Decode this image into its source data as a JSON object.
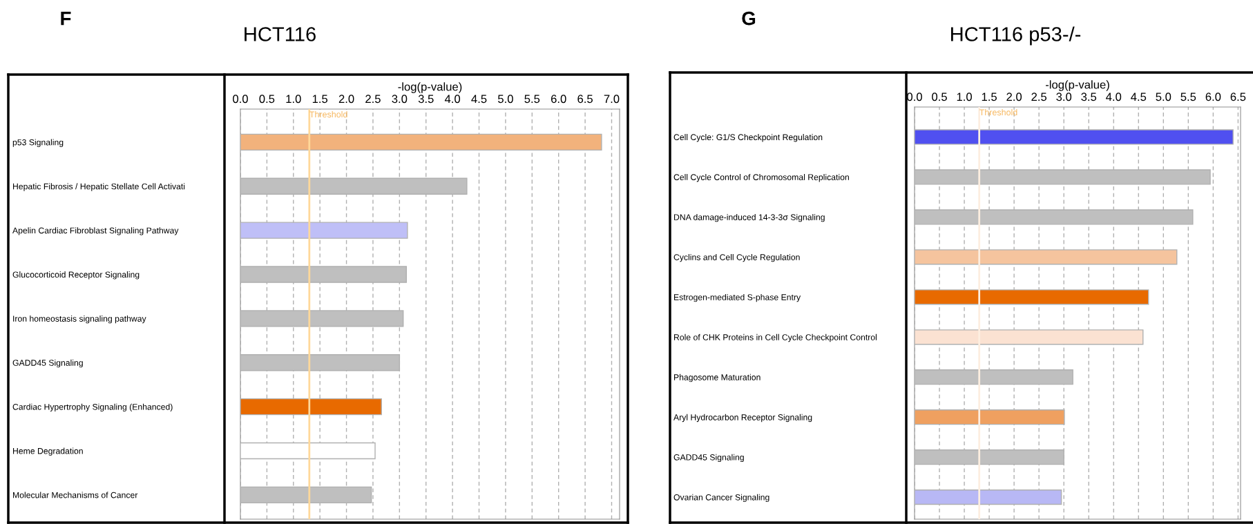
{
  "chart_data": [
    {
      "type": "bar",
      "orientation": "horizontal",
      "title": "HCT116",
      "xlabel": "-log(p-value)",
      "annotations": [
        "F"
      ],
      "categories": [
        "p53 Signaling",
        "Hepatic Fibrosis / Hepatic Stellate Cell Activati",
        "Apelin Cardiac Fibroblast Signaling Pathway",
        "Glucocorticoid Receptor Signaling",
        "Iron homeostasis signaling pathway",
        "GADD45 Signaling",
        "Cardiac Hypertrophy Signaling (Enhanced)",
        "Heme Degradation",
        "Molecular Mechanisms of Cancer"
      ],
      "values": [
        6.81,
        4.27,
        3.15,
        3.13,
        3.07,
        3.0,
        2.66,
        2.54,
        2.47
      ],
      "colors": [
        "#f2b27c",
        "#bfbfbf",
        "#bfbff7",
        "#bfbfbf",
        "#bfbfbf",
        "#bfbfbf",
        "#e86a00",
        "#ffffff",
        "#bfbfbf"
      ],
      "xlim": [
        0,
        7.15
      ],
      "xticks": [
        {
          "value": 0,
          "label": "0.0"
        },
        {
          "value": 0.5,
          "label": "0.5"
        },
        {
          "value": 1,
          "label": "1.0"
        },
        {
          "value": 1.5,
          "label": "1.5"
        },
        {
          "value": 2,
          "label": "2.0"
        },
        {
          "value": 2.5,
          "label": "2.5"
        },
        {
          "value": 3,
          "label": "3.0"
        },
        {
          "value": 3.5,
          "label": "3.5"
        },
        {
          "value": 4,
          "label": "4.0"
        },
        {
          "value": 4.5,
          "label": "4.5"
        },
        {
          "value": 5,
          "label": "5.0"
        },
        {
          "value": 5.5,
          "label": "5.5"
        },
        {
          "value": 6,
          "label": "6.0"
        },
        {
          "value": 6.5,
          "label": "6.5"
        },
        {
          "value": 7,
          "label": "7.0"
        }
      ],
      "ref_lines": [
        {
          "axis": "x",
          "value": 1.3,
          "label": "Threshold",
          "color": "#ffd89a"
        }
      ],
      "grid": "x",
      "legend": false
    },
    {
      "type": "bar",
      "orientation": "horizontal",
      "title": "HCT116 p53-/-",
      "xlabel": "-log(p-value)",
      "annotations": [
        "G"
      ],
      "categories": [
        "Cell Cycle: G1/S Checkpoint Regulation",
        "Cell Cycle Control of Chromosomal Replication",
        "DNA damage-induced 14-3-3σ Signaling",
        "Cyclins and Cell Cycle Regulation",
        "Estrogen-mediated S-phase Entry",
        "Role of CHK Proteins in Cell Cycle Checkpoint Control",
        "Phagosome Maturation",
        "Aryl Hydrocarbon Receptor Signaling",
        "GADD45 Signaling",
        "Ovarian Cancer Signaling"
      ],
      "values": [
        6.4,
        5.94,
        5.59,
        5.27,
        4.7,
        4.59,
        3.18,
        3.01,
        3.0,
        2.95
      ],
      "colors": [
        "#5050f0",
        "#bfbfbf",
        "#bfbfbf",
        "#f5c49e",
        "#e86a00",
        "#fbe2d2",
        "#bfbfbf",
        "#efa060",
        "#bfbfbf",
        "#b8b8f5"
      ],
      "xlim": [
        0,
        6.55
      ],
      "xticks": [
        {
          "value": 0,
          "label": "0.0"
        },
        {
          "value": 0.5,
          "label": "0.5"
        },
        {
          "value": 1,
          "label": "1.0"
        },
        {
          "value": 1.5,
          "label": "1.5"
        },
        {
          "value": 2,
          "label": "2.0"
        },
        {
          "value": 2.5,
          "label": "2.5"
        },
        {
          "value": 3,
          "label": "3.0"
        },
        {
          "value": 3.5,
          "label": "3.5"
        },
        {
          "value": 4,
          "label": "4.0"
        },
        {
          "value": 4.5,
          "label": "4.5"
        },
        {
          "value": 5,
          "label": "5.0"
        },
        {
          "value": 5.5,
          "label": "5.5"
        },
        {
          "value": 6,
          "label": "6.0"
        },
        {
          "value": 6.5,
          "label": "6.5"
        }
      ],
      "ref_lines": [
        {
          "axis": "x",
          "value": 1.3,
          "label": "Threshold",
          "color": "#fdeee0"
        }
      ],
      "grid": "x",
      "legend": false
    }
  ]
}
